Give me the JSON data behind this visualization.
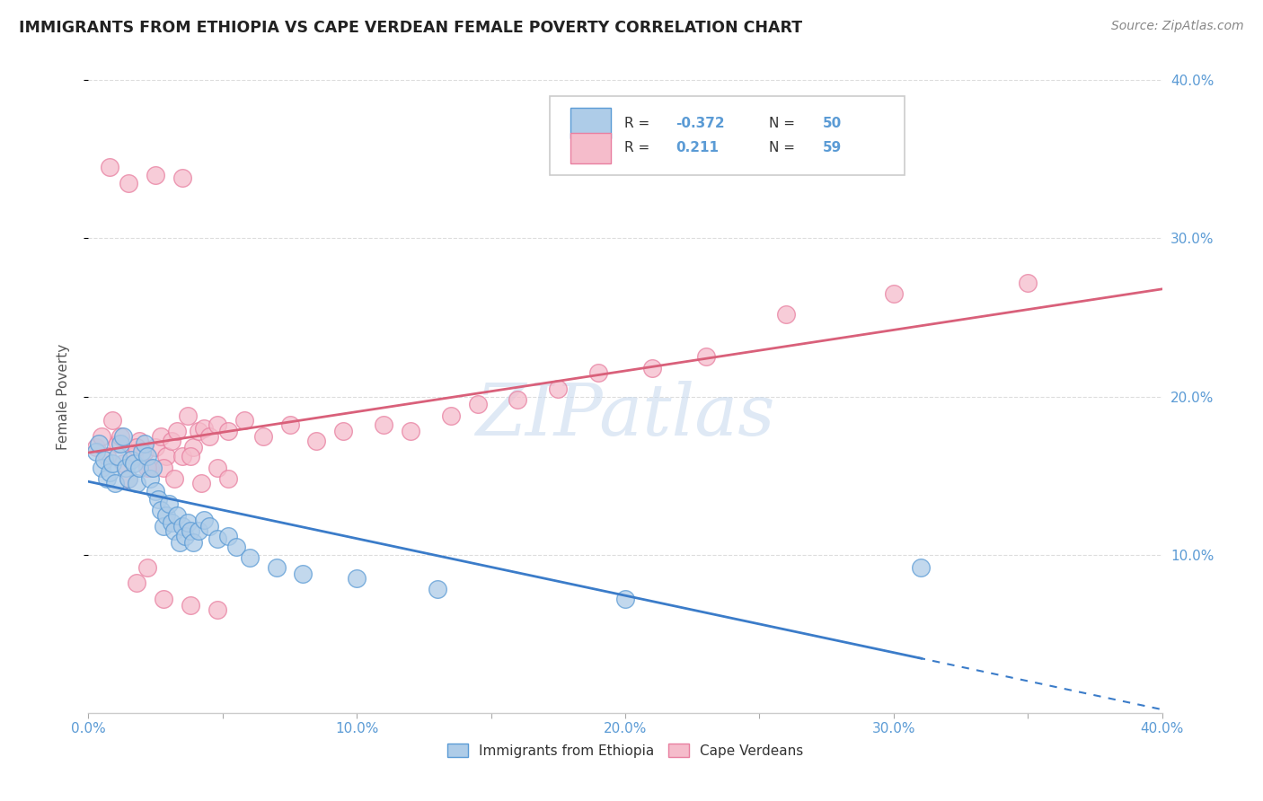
{
  "title": "IMMIGRANTS FROM ETHIOPIA VS CAPE VERDEAN FEMALE POVERTY CORRELATION CHART",
  "source": "Source: ZipAtlas.com",
  "ylabel": "Female Poverty",
  "xlim": [
    0.0,
    0.4
  ],
  "ylim": [
    0.0,
    0.4
  ],
  "xtick_labels": [
    "0.0%",
    "",
    "10.0%",
    "",
    "20.0%",
    "",
    "30.0%",
    "",
    "40.0%"
  ],
  "xtick_vals": [
    0.0,
    0.05,
    0.1,
    0.15,
    0.2,
    0.25,
    0.3,
    0.35,
    0.4
  ],
  "ytick_labels_right": [
    "10.0%",
    "20.0%",
    "30.0%",
    "40.0%"
  ],
  "ytick_vals_right": [
    0.1,
    0.2,
    0.3,
    0.4
  ],
  "watermark": "ZIPatlas",
  "series1_label": "Immigrants from Ethiopia",
  "series2_label": "Cape Verdeans",
  "series1_color": "#aecce8",
  "series2_color": "#f5bccb",
  "series1_edge": "#5b9bd5",
  "series2_edge": "#e87fa0",
  "trend1_color": "#3b7cc9",
  "trend2_color": "#d9607a",
  "background_color": "#ffffff",
  "grid_color": "#dddddd",
  "axis_color": "#5b9bd5",
  "title_color": "#222222",
  "series1_x": [
    0.003,
    0.004,
    0.005,
    0.006,
    0.007,
    0.008,
    0.009,
    0.01,
    0.011,
    0.012,
    0.013,
    0.014,
    0.015,
    0.016,
    0.017,
    0.018,
    0.019,
    0.02,
    0.021,
    0.022,
    0.023,
    0.024,
    0.025,
    0.026,
    0.027,
    0.028,
    0.029,
    0.03,
    0.031,
    0.032,
    0.033,
    0.034,
    0.035,
    0.036,
    0.037,
    0.038,
    0.039,
    0.041,
    0.043,
    0.045,
    0.048,
    0.052,
    0.055,
    0.06,
    0.07,
    0.08,
    0.1,
    0.13,
    0.2,
    0.31
  ],
  "series1_y": [
    0.165,
    0.17,
    0.155,
    0.16,
    0.148,
    0.152,
    0.158,
    0.145,
    0.162,
    0.17,
    0.175,
    0.155,
    0.148,
    0.16,
    0.158,
    0.145,
    0.155,
    0.165,
    0.17,
    0.162,
    0.148,
    0.155,
    0.14,
    0.135,
    0.128,
    0.118,
    0.125,
    0.132,
    0.12,
    0.115,
    0.125,
    0.108,
    0.118,
    0.112,
    0.12,
    0.115,
    0.108,
    0.115,
    0.122,
    0.118,
    0.11,
    0.112,
    0.105,
    0.098,
    0.092,
    0.088,
    0.085,
    0.078,
    0.072,
    0.092
  ],
  "series2_x": [
    0.003,
    0.005,
    0.007,
    0.009,
    0.011,
    0.013,
    0.015,
    0.017,
    0.019,
    0.021,
    0.023,
    0.025,
    0.027,
    0.029,
    0.031,
    0.033,
    0.035,
    0.037,
    0.039,
    0.041,
    0.043,
    0.045,
    0.048,
    0.052,
    0.058,
    0.065,
    0.075,
    0.085,
    0.095,
    0.11,
    0.12,
    0.135,
    0.145,
    0.16,
    0.175,
    0.19,
    0.21,
    0.23,
    0.26,
    0.3,
    0.35,
    0.028,
    0.038,
    0.048,
    0.015,
    0.025,
    0.035,
    0.008,
    0.012,
    0.018,
    0.022,
    0.032,
    0.042,
    0.052,
    0.018,
    0.028,
    0.038,
    0.048,
    0.022
  ],
  "series2_y": [
    0.168,
    0.175,
    0.162,
    0.185,
    0.17,
    0.158,
    0.148,
    0.162,
    0.172,
    0.165,
    0.155,
    0.168,
    0.175,
    0.162,
    0.172,
    0.178,
    0.162,
    0.188,
    0.168,
    0.178,
    0.18,
    0.175,
    0.182,
    0.178,
    0.185,
    0.175,
    0.182,
    0.172,
    0.178,
    0.182,
    0.178,
    0.188,
    0.195,
    0.198,
    0.205,
    0.215,
    0.218,
    0.225,
    0.252,
    0.265,
    0.272,
    0.155,
    0.162,
    0.155,
    0.335,
    0.34,
    0.338,
    0.345,
    0.175,
    0.168,
    0.155,
    0.148,
    0.145,
    0.148,
    0.082,
    0.072,
    0.068,
    0.065,
    0.092
  ]
}
